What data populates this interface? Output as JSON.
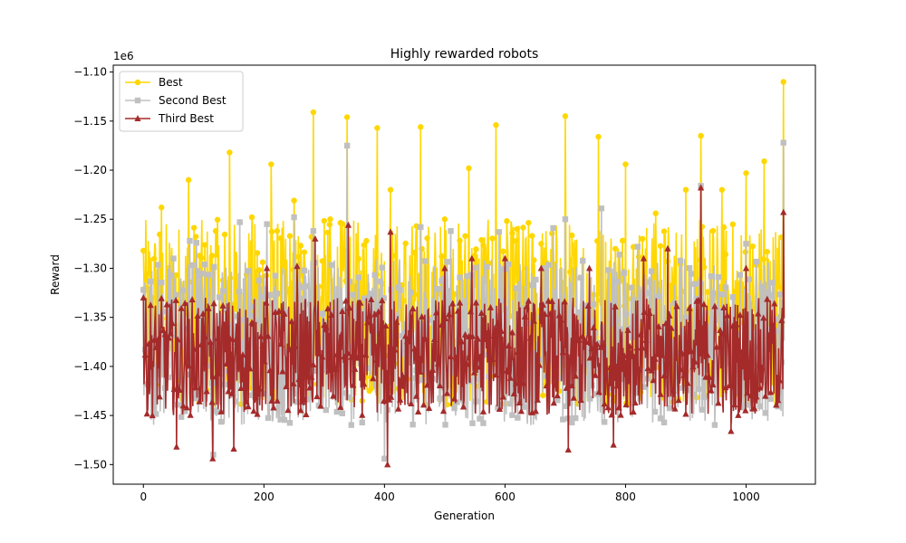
{
  "chart_data": {
    "type": "line",
    "title": "Highly rewarded robots",
    "xlabel": "Generation",
    "ylabel": "Reward",
    "y_scale_label": "1e6",
    "xlim": [
      -50,
      1115
    ],
    "ylim": [
      -1.52,
      -1.093
    ],
    "xticks": [
      0,
      200,
      400,
      600,
      800,
      1000
    ],
    "yticks": [
      -1.5,
      -1.45,
      -1.4,
      -1.35,
      -1.3,
      -1.25,
      -1.2,
      -1.15,
      -1.1
    ],
    "ytick_labels": [
      "−1.50",
      "−1.45",
      "−1.40",
      "−1.35",
      "−1.30",
      "−1.25",
      "−1.20",
      "−1.15",
      "−1.10"
    ],
    "legend_position": "upper-left",
    "grid": false,
    "n_generations": 1064,
    "series": [
      {
        "name": "Best",
        "color": "#FFD700",
        "marker": "circle",
        "x": [
          0,
          30,
          75,
          120,
          143,
          180,
          212,
          250,
          282,
          310,
          338,
          370,
          388,
          410,
          460,
          500,
          540,
          585,
          620,
          660,
          700,
          755,
          800,
          850,
          900,
          925,
          960,
          1000,
          1030,
          1062
        ],
        "values": [
          -1.282,
          -1.238,
          -1.21,
          -1.262,
          -1.182,
          -1.248,
          -1.194,
          -1.231,
          -1.141,
          -1.25,
          -1.146,
          -1.272,
          -1.157,
          -1.22,
          -1.156,
          -1.25,
          -1.198,
          -1.154,
          -1.26,
          -1.275,
          -1.145,
          -1.166,
          -1.194,
          -1.244,
          -1.22,
          -1.165,
          -1.22,
          -1.203,
          -1.191,
          -1.11
        ],
        "range_low": -1.44,
        "range_high": -1.25
      },
      {
        "name": "Second Best",
        "color": "#C0C0C0",
        "marker": "square",
        "x": [
          0,
          50,
          77,
          88,
          116,
          160,
          205,
          250,
          282,
          338,
          400,
          460,
          510,
          590,
          680,
          700,
          760,
          790,
          820,
          925,
          1000,
          1062
        ],
        "values": [
          -1.322,
          -1.29,
          -1.272,
          -1.274,
          -1.49,
          -1.253,
          -1.255,
          -1.248,
          -1.262,
          -1.175,
          -1.494,
          -1.258,
          -1.262,
          -1.263,
          -1.259,
          -1.25,
          -1.239,
          -1.286,
          -1.278,
          -1.216,
          -1.275,
          -1.172
        ],
        "range_low": -1.46,
        "range_high": -1.29
      },
      {
        "name": "Third Best",
        "color": "#A52A2A",
        "marker": "triangle",
        "x": [
          0,
          55,
          115,
          150,
          205,
          255,
          285,
          340,
          405,
          410,
          500,
          545,
          600,
          660,
          705,
          740,
          780,
          830,
          870,
          925,
          975,
          1000,
          1062
        ],
        "values": [
          -1.33,
          -1.482,
          -1.494,
          -1.484,
          -1.3,
          -1.298,
          -1.27,
          -1.256,
          -1.5,
          -1.263,
          -1.3,
          -1.29,
          -1.29,
          -1.3,
          -1.485,
          -1.3,
          -1.48,
          -1.29,
          -1.28,
          -1.218,
          -1.466,
          -1.3,
          -1.243
        ],
        "range_low": -1.45,
        "range_high": -1.33
      }
    ]
  }
}
